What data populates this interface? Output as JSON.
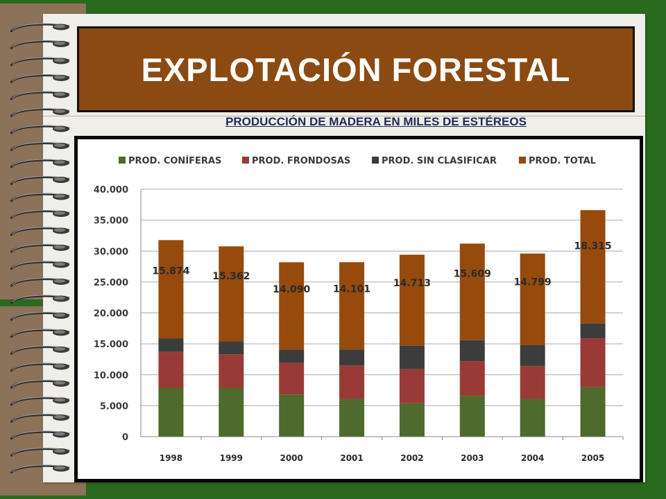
{
  "slide": {
    "title": "EXPLOTACIÓN FORESTAL",
    "subtitle": "PRODUCCIÓN DE MADERA EN MILES DE ESTÉREOS"
  },
  "colors": {
    "background": "#2a6a1e",
    "title_box": "#8b4a11",
    "coniferas": "#4e6a2c",
    "frondosas": "#9a3a36",
    "sin_clasificar": "#3c3c3c",
    "total": "#964a0c"
  },
  "chart_data": {
    "type": "bar",
    "stacked": true,
    "categories": [
      "1998",
      "1999",
      "2000",
      "2001",
      "2002",
      "2003",
      "2004",
      "2005"
    ],
    "series": [
      {
        "name": "PROD. CONÍFERAS",
        "color": "#4e6a2c",
        "values": [
          7900,
          7900,
          6800,
          6100,
          5400,
          6600,
          6100,
          8000
        ]
      },
      {
        "name": "PROD. FRONDOSAS",
        "color": "#9a3a36",
        "values": [
          5800,
          5400,
          5100,
          5400,
          5500,
          5600,
          5300,
          7900
        ]
      },
      {
        "name": "PROD. SIN CLASIFICAR",
        "color": "#3c3c3c",
        "values": [
          2200,
          2100,
          2200,
          2600,
          3800,
          3400,
          3400,
          2400
        ]
      },
      {
        "name": "PROD. TOTAL",
        "color": "#964a0c",
        "values": [
          15874,
          15362,
          14090,
          14101,
          14713,
          15609,
          14799,
          18315
        ]
      }
    ],
    "data_labels": [
      "15.874",
      "15.362",
      "14.090",
      "14.101",
      "14.713",
      "15.609",
      "14.799",
      "18.315"
    ],
    "y_ticks": [
      "0",
      "5.000",
      "10.000",
      "15.000",
      "20.000",
      "25.000",
      "30.000",
      "35.000",
      "40.000"
    ],
    "ylim": [
      0,
      40000
    ],
    "grid": true,
    "legend_position": "top"
  }
}
